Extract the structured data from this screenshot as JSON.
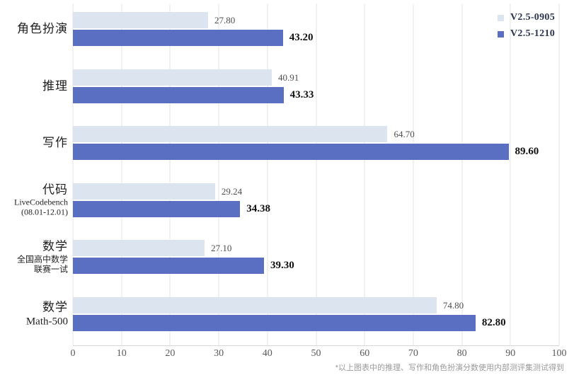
{
  "chart_data": {
    "type": "bar",
    "orientation": "horizontal",
    "title": "",
    "xlabel": "",
    "ylabel": "",
    "xlim": [
      0,
      100
    ],
    "ticks": [
      0,
      10,
      20,
      30,
      40,
      50,
      60,
      70,
      80,
      90,
      100
    ],
    "grid": "vertical-light-gray",
    "legend_position": "top-right",
    "categories": [
      {
        "label": "角色扮演",
        "sublabel": "",
        "sublabel_style": "normal"
      },
      {
        "label": "推理",
        "sublabel": "",
        "sublabel_style": "normal"
      },
      {
        "label": "写作",
        "sublabel": "",
        "sublabel_style": "normal"
      },
      {
        "label": "代码",
        "sublabel": "LiveCodebench\n(08.01-12.01)",
        "sublabel_style": "normal"
      },
      {
        "label": "数学",
        "sublabel": "全国高中数学\n联赛一试",
        "sublabel_style": "normal"
      },
      {
        "label": "数学",
        "sublabel": "Math-500",
        "sublabel_style": "big"
      }
    ],
    "series": [
      {
        "name": "V2.5-0905",
        "color": "#dce4f0",
        "values": [
          27.8,
          40.91,
          64.7,
          29.24,
          27.1,
          74.8
        ],
        "value_labels": [
          "27.80",
          "40.91",
          "64.70",
          "29.24",
          "27.10",
          "74.80"
        ]
      },
      {
        "name": "V2.5-1210",
        "color": "#5a6fc1",
        "values": [
          43.2,
          43.33,
          89.6,
          34.38,
          39.3,
          82.8
        ],
        "value_labels": [
          "43.20",
          "43.33",
          "89.60",
          "34.38",
          "39.30",
          "82.80"
        ]
      }
    ]
  },
  "footnote": "*以上图表中的推理、写作和角色扮演分数使用内部测评集测试得到",
  "colors": {
    "gridline": "#e3e3e3",
    "axis_line": "#d6d6d6",
    "light_value_text": "#4f4f4f",
    "dark_value_text": "#111111",
    "tick_text": "#595959",
    "footnote_text": "#9a9a9a"
  }
}
